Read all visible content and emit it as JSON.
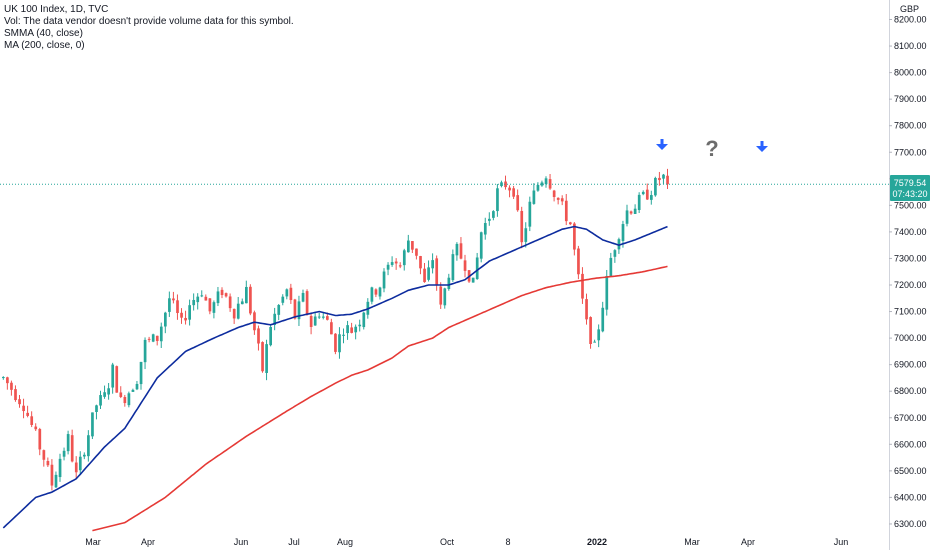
{
  "legend": {
    "title": "UK 100 Index, 1D, TVC",
    "vol": "Vol: The data vendor doesn't provide volume data for this symbol.",
    "smma": "SMMA (40, close)",
    "ma": "MA (200, close, 0)"
  },
  "annotations": {
    "question_mark": "?"
  },
  "colors": {
    "up": "#26a69a",
    "down": "#ef5350",
    "smma": "#0d2c9e",
    "ma": "#e53935",
    "price_label": "#26a69a",
    "arrow": "#2962ff",
    "question": "#6d6d6d"
  },
  "chart_data": {
    "type": "candlestick",
    "symbol": "UK 100 Index",
    "interval": "1D",
    "source": "TVC",
    "currency": "GBP",
    "last_price": "7579.54",
    "countdown": "07:43:20",
    "ylim": [
      6270,
      8235
    ],
    "y_ticks": [
      "8200.00",
      "8100.00",
      "8000.00",
      "7900.00",
      "7800.00",
      "7700.00",
      "7600.00",
      "7500.00",
      "7400.00",
      "7300.00",
      "7200.00",
      "7100.00",
      "7000.00",
      "6900.00",
      "6800.00",
      "6700.00",
      "6600.00",
      "6500.00",
      "6400.00",
      "6300.00"
    ],
    "x_ticks": [
      "Mar",
      "Apr",
      "Jun",
      "Jul",
      "Aug",
      "Oct",
      "8",
      "2022",
      "Mar",
      "Apr",
      "Jun"
    ],
    "anchors": [
      [
        0,
        6850
      ],
      [
        5,
        6750
      ],
      [
        10,
        6550
      ],
      [
        12,
        6450
      ],
      [
        14,
        6550
      ],
      [
        16,
        6620
      ],
      [
        18,
        6480
      ],
      [
        21,
        6640
      ],
      [
        23,
        6750
      ],
      [
        25,
        6780
      ],
      [
        27,
        6880
      ],
      [
        29,
        6760
      ],
      [
        31,
        6800
      ],
      [
        33,
        6850
      ],
      [
        35,
        6980
      ],
      [
        38,
        7000
      ],
      [
        41,
        7150
      ],
      [
        44,
        7050
      ],
      [
        46,
        7130
      ],
      [
        49,
        7180
      ],
      [
        51,
        7100
      ],
      [
        54,
        7180
      ],
      [
        57,
        7100
      ],
      [
        60,
        7180
      ],
      [
        62,
        7030
      ],
      [
        64,
        6880
      ],
      [
        66,
        7050
      ],
      [
        68,
        7120
      ],
      [
        70,
        7180
      ],
      [
        72,
        7080
      ],
      [
        74,
        7150
      ],
      [
        76,
        7050
      ],
      [
        78,
        7100
      ],
      [
        80,
        7060
      ],
      [
        82,
        6970
      ],
      [
        84,
        7040
      ],
      [
        86,
        7030
      ],
      [
        88,
        7070
      ],
      [
        90,
        7150
      ],
      [
        93,
        7200
      ],
      [
        96,
        7300
      ],
      [
        98,
        7270
      ],
      [
        100,
        7370
      ],
      [
        102,
        7320
      ],
      [
        104,
        7200
      ],
      [
        106,
        7300
      ],
      [
        108,
        7110
      ],
      [
        110,
        7250
      ],
      [
        112,
        7330
      ],
      [
        114,
        7280
      ],
      [
        116,
        7200
      ],
      [
        118,
        7400
      ],
      [
        120,
        7460
      ],
      [
        122,
        7550
      ],
      [
        124,
        7580
      ],
      [
        126,
        7560
      ],
      [
        128,
        7350
      ],
      [
        130,
        7500
      ],
      [
        132,
        7580
      ],
      [
        134,
        7620
      ],
      [
        136,
        7550
      ],
      [
        138,
        7490
      ],
      [
        140,
        7430
      ],
      [
        142,
        7220
      ],
      [
        144,
        7050
      ],
      [
        146,
        6960
      ],
      [
        148,
        7130
      ],
      [
        150,
        7300
      ],
      [
        152,
        7400
      ],
      [
        154,
        7480
      ],
      [
        156,
        7500
      ],
      [
        158,
        7530
      ],
      [
        160,
        7560
      ],
      [
        162,
        7600
      ],
      [
        163,
        7605
      ],
      [
        164,
        7580
      ]
    ],
    "smma_anchors": [
      [
        0,
        6285
      ],
      [
        8,
        6400
      ],
      [
        12,
        6420
      ],
      [
        18,
        6470
      ],
      [
        25,
        6590
      ],
      [
        30,
        6660
      ],
      [
        38,
        6850
      ],
      [
        45,
        6950
      ],
      [
        52,
        7000
      ],
      [
        58,
        7040
      ],
      [
        62,
        7060
      ],
      [
        66,
        7050
      ],
      [
        72,
        7080
      ],
      [
        78,
        7100
      ],
      [
        82,
        7085
      ],
      [
        86,
        7090
      ],
      [
        90,
        7110
      ],
      [
        96,
        7150
      ],
      [
        100,
        7180
      ],
      [
        105,
        7200
      ],
      [
        110,
        7200
      ],
      [
        114,
        7220
      ],
      [
        120,
        7290
      ],
      [
        126,
        7330
      ],
      [
        132,
        7370
      ],
      [
        138,
        7410
      ],
      [
        141,
        7420
      ],
      [
        144,
        7410
      ],
      [
        148,
        7370
      ],
      [
        152,
        7350
      ],
      [
        156,
        7370
      ],
      [
        160,
        7395
      ],
      [
        164,
        7420
      ]
    ],
    "ma_anchors": [
      [
        22,
        6275
      ],
      [
        30,
        6305
      ],
      [
        40,
        6400
      ],
      [
        50,
        6525
      ],
      [
        60,
        6630
      ],
      [
        70,
        6725
      ],
      [
        76,
        6780
      ],
      [
        82,
        6830
      ],
      [
        86,
        6860
      ],
      [
        90,
        6880
      ],
      [
        96,
        6925
      ],
      [
        100,
        6970
      ],
      [
        106,
        7000
      ],
      [
        110,
        7040
      ],
      [
        116,
        7080
      ],
      [
        122,
        7120
      ],
      [
        128,
        7160
      ],
      [
        134,
        7190
      ],
      [
        140,
        7210
      ],
      [
        146,
        7225
      ],
      [
        152,
        7235
      ],
      [
        158,
        7250
      ],
      [
        164,
        7270
      ]
    ]
  }
}
